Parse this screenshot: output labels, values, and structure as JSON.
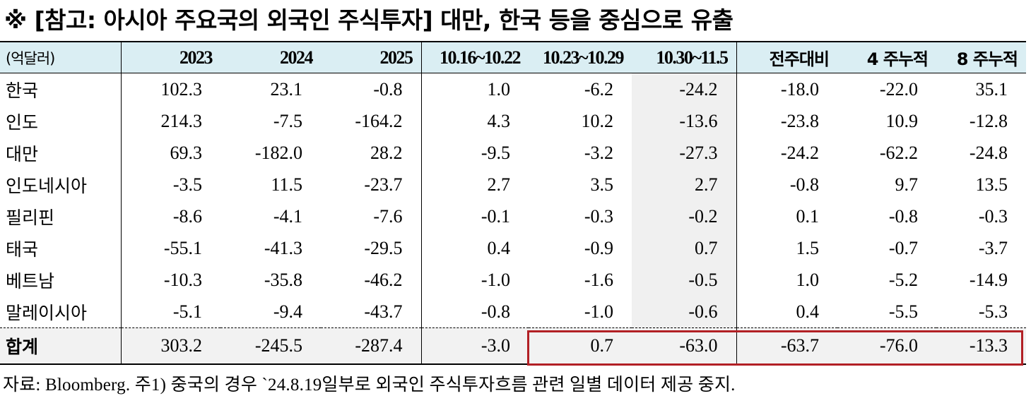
{
  "title": "※ [참고: 아시아 주요국의 외국인 주식투자] 대만, 한국 등을 중심으로 유출",
  "table": {
    "columns": [
      "(억달러)",
      "2023",
      "2024",
      "2025",
      "10.16~10.22",
      "10.23~10.29",
      "10.30~11.5",
      "전주대비",
      "4 주누적",
      "8 주누적"
    ],
    "rows": [
      {
        "name": "한국",
        "values": [
          "102.3",
          "23.1",
          "-0.8",
          "1.0",
          "-6.2",
          "-24.2",
          "-18.0",
          "-22.0",
          "35.1"
        ]
      },
      {
        "name": "인도",
        "values": [
          "214.3",
          "-7.5",
          "-164.2",
          "4.3",
          "10.2",
          "-13.6",
          "-23.8",
          "10.9",
          "-12.8"
        ]
      },
      {
        "name": "대만",
        "values": [
          "69.3",
          "-182.0",
          "28.2",
          "-9.5",
          "-3.2",
          "-27.3",
          "-24.2",
          "-62.2",
          "-24.8"
        ]
      },
      {
        "name": "인도네시아",
        "values": [
          "-3.5",
          "11.5",
          "-23.7",
          "2.7",
          "3.5",
          "2.7",
          "-0.8",
          "9.7",
          "13.5"
        ]
      },
      {
        "name": "필리핀",
        "values": [
          "-8.6",
          "-4.1",
          "-7.6",
          "-0.1",
          "-0.3",
          "-0.2",
          "0.1",
          "-0.8",
          "-0.3"
        ]
      },
      {
        "name": "태국",
        "values": [
          "-55.1",
          "-41.3",
          "-29.5",
          "0.4",
          "-0.9",
          "0.7",
          "1.5",
          "-0.7",
          "-3.7"
        ]
      },
      {
        "name": "베트남",
        "values": [
          "-10.3",
          "-35.8",
          "-46.2",
          "-1.0",
          "-1.6",
          "-0.5",
          "1.0",
          "-5.2",
          "-14.9"
        ]
      },
      {
        "name": "말레이시아",
        "values": [
          "-5.1",
          "-9.4",
          "-43.7",
          "-0.8",
          "-1.0",
          "-0.6",
          "0.4",
          "-5.5",
          "-5.3"
        ]
      }
    ],
    "total": {
      "name": "합계",
      "values": [
        "303.2",
        "-245.5",
        "-287.4",
        "-3.0",
        "0.7",
        "-63.0",
        "-63.7",
        "-76.0",
        "-13.3"
      ]
    }
  },
  "source": "자료: Bloomberg. 주1) 중국의 경우 `24.8.19일부로 외국인 주식투자흐름 관련 일별 데이터 제공 중지.",
  "colors": {
    "header_bg": "#daeef3",
    "highlight_border": "#b22025",
    "shade": "#f0f0f0"
  }
}
